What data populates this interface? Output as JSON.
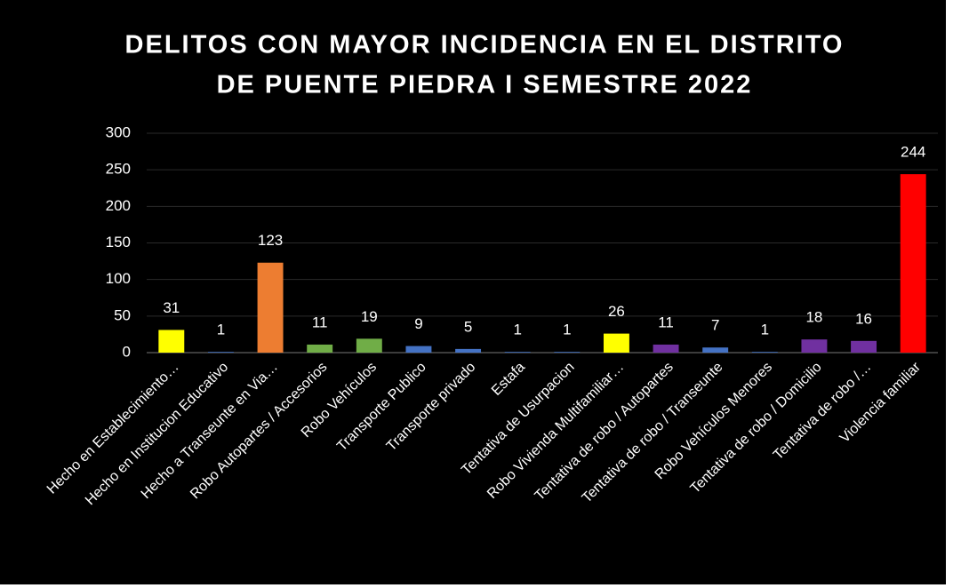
{
  "chart_data": {
    "type": "bar",
    "title": [
      "DELITOS CON MAYOR INCIDENCIA EN EL DISTRITO",
      "DE PUENTE PIEDRA I SEMESTRE 2022"
    ],
    "categories": [
      "Hecho en Establecimiento…",
      "Hecho en Institucion Educativo",
      "Hecho a Transeunte en Via…",
      "Robo Autopartes / Accesorios",
      "Robo Vehículos",
      "Transporte Publico",
      "Transporte privado",
      "Estafa",
      "Tentativa de Usurpacion",
      "Robo Vivienda Multifamiliar…",
      "Tentativa de robo / Autopartes",
      "Tentativa de robo / Transeunte",
      "Robo Vehículos Menores",
      "Tentativa de robo / Domicilio",
      "Tentativa de robo /…",
      "Violencia familiar"
    ],
    "values": [
      31,
      1,
      123,
      11,
      19,
      9,
      5,
      1,
      1,
      26,
      11,
      7,
      1,
      18,
      16,
      244
    ],
    "colors": [
      "#ffff00",
      "#4472c4",
      "#ed7d31",
      "#70ad47",
      "#70ad47",
      "#4472c4",
      "#4472c4",
      "#4472c4",
      "#4472c4",
      "#ffff00",
      "#7030a0",
      "#4472c4",
      "#4472c4",
      "#7030a0",
      "#7030a0",
      "#ff0000"
    ],
    "ylim": [
      0,
      300
    ],
    "yticks": [
      0,
      50,
      100,
      150,
      200,
      250,
      300
    ],
    "grid": true
  }
}
